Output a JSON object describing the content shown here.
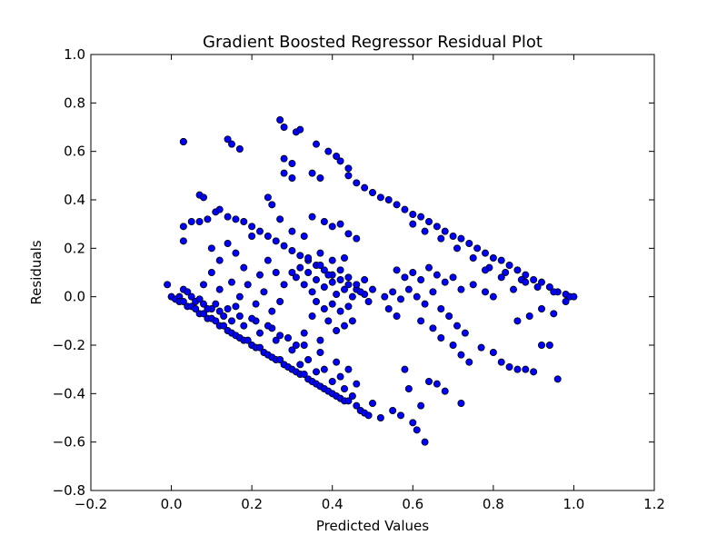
{
  "chart_data": {
    "type": "scatter",
    "title": "Gradient Boosted Regressor Residual Plot",
    "xlabel": "Predicted Values",
    "ylabel": "Residuals",
    "xlim": [
      -0.2,
      1.2
    ],
    "ylim": [
      -0.8,
      1.0
    ],
    "xticks": [
      -0.2,
      0.0,
      0.2,
      0.4,
      0.6,
      0.8,
      1.0,
      1.2
    ],
    "yticks": [
      -0.8,
      -0.6,
      -0.4,
      -0.2,
      0.0,
      0.2,
      0.4,
      0.6,
      0.8,
      1.0
    ],
    "xtick_labels": [
      "−0.2",
      "0.0",
      "0.2",
      "0.4",
      "0.6",
      "0.8",
      "1.0",
      "1.2"
    ],
    "ytick_labels": [
      "−0.8",
      "−0.6",
      "−0.4",
      "−0.2",
      "0.0",
      "0.2",
      "0.4",
      "0.6",
      "0.8",
      "1.0"
    ],
    "grid": false,
    "marker_color": "#0000ff",
    "marker_edge_color": "#000000",
    "series": [
      {
        "points": [
          [
            -0.01,
            0.05
          ],
          [
            0.0,
            0.0
          ],
          [
            0.01,
            -0.01
          ],
          [
            0.02,
            0.0
          ],
          [
            0.02,
            -0.02
          ],
          [
            0.03,
            -0.02
          ],
          [
            0.04,
            -0.04
          ],
          [
            0.05,
            -0.04
          ],
          [
            0.06,
            -0.05
          ],
          [
            0.07,
            -0.07
          ],
          [
            0.08,
            -0.07
          ],
          [
            0.09,
            -0.09
          ],
          [
            0.1,
            -0.09
          ],
          [
            0.11,
            -0.1
          ],
          [
            0.12,
            -0.12
          ],
          [
            0.13,
            -0.12
          ],
          [
            0.14,
            -0.14
          ],
          [
            0.15,
            -0.15
          ],
          [
            0.16,
            -0.16
          ],
          [
            0.17,
            -0.17
          ],
          [
            0.18,
            -0.18
          ],
          [
            0.19,
            -0.18
          ],
          [
            0.2,
            -0.2
          ],
          [
            0.21,
            -0.21
          ],
          [
            0.22,
            -0.21
          ],
          [
            0.23,
            -0.23
          ],
          [
            0.24,
            -0.24
          ],
          [
            0.25,
            -0.25
          ],
          [
            0.26,
            -0.26
          ],
          [
            0.27,
            -0.26
          ],
          [
            0.28,
            -0.28
          ],
          [
            0.29,
            -0.29
          ],
          [
            0.3,
            -0.3
          ],
          [
            0.31,
            -0.31
          ],
          [
            0.32,
            -0.32
          ],
          [
            0.33,
            -0.32
          ],
          [
            0.34,
            -0.34
          ],
          [
            0.35,
            -0.35
          ],
          [
            0.36,
            -0.36
          ],
          [
            0.37,
            -0.37
          ],
          [
            0.38,
            -0.38
          ],
          [
            0.39,
            -0.39
          ],
          [
            0.4,
            -0.4
          ],
          [
            0.41,
            -0.41
          ],
          [
            0.42,
            -0.42
          ],
          [
            0.43,
            -0.43
          ],
          [
            0.44,
            -0.43
          ],
          [
            0.46,
            -0.45
          ],
          [
            0.47,
            -0.47
          ],
          [
            0.48,
            -0.48
          ],
          [
            0.49,
            -0.49
          ],
          [
            0.03,
            0.03
          ],
          [
            0.04,
            0.02
          ],
          [
            0.05,
            0.0
          ],
          [
            0.06,
            -0.02
          ],
          [
            0.08,
            -0.03
          ],
          [
            0.1,
            -0.05
          ],
          [
            0.12,
            -0.06
          ],
          [
            0.15,
            -0.1
          ],
          [
            0.18,
            -0.12
          ],
          [
            0.22,
            -0.15
          ],
          [
            0.26,
            -0.18
          ],
          [
            0.3,
            -0.22
          ],
          [
            0.34,
            -0.26
          ],
          [
            0.38,
            -0.3
          ],
          [
            0.42,
            -0.33
          ],
          [
            0.46,
            -0.36
          ],
          [
            0.07,
            -0.01
          ],
          [
            0.11,
            -0.03
          ],
          [
            0.14,
            -0.05
          ],
          [
            0.17,
            -0.08
          ],
          [
            0.21,
            -0.1
          ],
          [
            0.25,
            -0.13
          ],
          [
            0.29,
            -0.17
          ],
          [
            0.33,
            -0.2
          ],
          [
            0.37,
            -0.23
          ],
          [
            0.41,
            -0.27
          ],
          [
            0.44,
            -0.3
          ],
          [
            0.52,
            -0.5
          ],
          [
            0.55,
            -0.47
          ],
          [
            0.57,
            -0.49
          ],
          [
            0.6,
            -0.52
          ],
          [
            0.61,
            -0.55
          ],
          [
            0.63,
            -0.6
          ],
          [
            0.62,
            -0.45
          ],
          [
            0.64,
            -0.35
          ],
          [
            0.66,
            -0.36
          ],
          [
            0.68,
            -0.39
          ],
          [
            0.72,
            -0.44
          ],
          [
            0.59,
            -0.38
          ],
          [
            0.58,
            -0.3
          ],
          [
            0.03,
            0.64
          ],
          [
            0.03,
            0.64
          ],
          [
            0.14,
            0.65
          ],
          [
            0.15,
            0.63
          ],
          [
            0.17,
            0.61
          ],
          [
            0.27,
            0.73
          ],
          [
            0.28,
            0.7
          ],
          [
            0.31,
            0.68
          ],
          [
            0.32,
            0.69
          ],
          [
            0.28,
            0.57
          ],
          [
            0.3,
            0.55
          ],
          [
            0.28,
            0.51
          ],
          [
            0.3,
            0.49
          ],
          [
            0.36,
            0.63
          ],
          [
            0.39,
            0.6
          ],
          [
            0.41,
            0.58
          ],
          [
            0.42,
            0.56
          ],
          [
            0.44,
            0.53
          ],
          [
            0.35,
            0.51
          ],
          [
            0.37,
            0.49
          ],
          [
            0.44,
            0.5
          ],
          [
            0.46,
            0.47
          ],
          [
            0.48,
            0.45
          ],
          [
            0.5,
            0.43
          ],
          [
            0.52,
            0.41
          ],
          [
            0.54,
            0.4
          ],
          [
            0.56,
            0.38
          ],
          [
            0.58,
            0.36
          ],
          [
            0.6,
            0.34
          ],
          [
            0.62,
            0.33
          ],
          [
            0.64,
            0.31
          ],
          [
            0.66,
            0.29
          ],
          [
            0.68,
            0.27
          ],
          [
            0.7,
            0.25
          ],
          [
            0.72,
            0.24
          ],
          [
            0.74,
            0.22
          ],
          [
            0.76,
            0.2
          ],
          [
            0.78,
            0.18
          ],
          [
            0.8,
            0.16
          ],
          [
            0.82,
            0.15
          ],
          [
            0.84,
            0.13
          ],
          [
            0.86,
            0.11
          ],
          [
            0.88,
            0.09
          ],
          [
            0.9,
            0.07
          ],
          [
            0.92,
            0.06
          ],
          [
            0.94,
            0.04
          ],
          [
            0.96,
            0.02
          ],
          [
            0.98,
            0.01
          ],
          [
            0.99,
            0.0
          ],
          [
            1.0,
            0.0
          ],
          [
            0.6,
            0.3
          ],
          [
            0.63,
            0.27
          ],
          [
            0.67,
            0.24
          ],
          [
            0.71,
            0.2
          ],
          [
            0.75,
            0.16
          ],
          [
            0.79,
            0.12
          ],
          [
            0.83,
            0.1
          ],
          [
            0.87,
            0.07
          ],
          [
            0.91,
            0.04
          ],
          [
            0.95,
            0.02
          ],
          [
            0.07,
            0.42
          ],
          [
            0.08,
            0.41
          ],
          [
            0.05,
            0.31
          ],
          [
            0.07,
            0.31
          ],
          [
            0.09,
            0.32
          ],
          [
            0.11,
            0.35
          ],
          [
            0.12,
            0.36
          ],
          [
            0.14,
            0.33
          ],
          [
            0.16,
            0.32
          ],
          [
            0.18,
            0.31
          ],
          [
            0.2,
            0.29
          ],
          [
            0.22,
            0.27
          ],
          [
            0.24,
            0.25
          ],
          [
            0.26,
            0.23
          ],
          [
            0.28,
            0.21
          ],
          [
            0.3,
            0.19
          ],
          [
            0.32,
            0.17
          ],
          [
            0.34,
            0.15
          ],
          [
            0.36,
            0.13
          ],
          [
            0.38,
            0.11
          ],
          [
            0.4,
            0.09
          ],
          [
            0.42,
            0.07
          ],
          [
            0.44,
            0.05
          ],
          [
            0.46,
            0.03
          ],
          [
            0.48,
            0.01
          ],
          [
            0.03,
            0.29
          ],
          [
            0.03,
            0.23
          ],
          [
            0.24,
            0.41
          ],
          [
            0.25,
            0.38
          ],
          [
            0.27,
            0.32
          ],
          [
            0.3,
            0.27
          ],
          [
            0.33,
            0.25
          ],
          [
            0.35,
            0.33
          ],
          [
            0.38,
            0.31
          ],
          [
            0.4,
            0.29
          ],
          [
            0.42,
            0.3
          ],
          [
            0.44,
            0.26
          ],
          [
            0.46,
            0.24
          ],
          [
            0.3,
            0.1
          ],
          [
            0.31,
            0.08
          ],
          [
            0.32,
            0.12
          ],
          [
            0.33,
            0.05
          ],
          [
            0.34,
            0.1
          ],
          [
            0.35,
            0.02
          ],
          [
            0.36,
            0.07
          ],
          [
            0.37,
            0.13
          ],
          [
            0.38,
            0.04
          ],
          [
            0.39,
            0.09
          ],
          [
            0.4,
            0.06
          ],
          [
            0.41,
            0.01
          ],
          [
            0.42,
            0.11
          ],
          [
            0.43,
            0.03
          ],
          [
            0.44,
            0.08
          ],
          [
            0.45,
            0.0
          ],
          [
            0.46,
            0.05
          ],
          [
            0.47,
            0.02
          ],
          [
            0.48,
            0.07
          ],
          [
            0.49,
            -0.02
          ],
          [
            0.5,
            0.03
          ],
          [
            0.36,
            -0.02
          ],
          [
            0.38,
            -0.05
          ],
          [
            0.4,
            -0.03
          ],
          [
            0.42,
            -0.06
          ],
          [
            0.44,
            -0.04
          ],
          [
            0.34,
            0.16
          ],
          [
            0.37,
            0.18
          ],
          [
            0.4,
            0.15
          ],
          [
            0.43,
            0.16
          ],
          [
            0.35,
            -0.08
          ],
          [
            0.39,
            -0.1
          ],
          [
            0.43,
            -0.12
          ],
          [
            0.33,
            -0.15
          ],
          [
            0.37,
            -0.18
          ],
          [
            0.41,
            -0.14
          ],
          [
            0.45,
            -0.1
          ],
          [
            0.28,
            0.05
          ],
          [
            0.26,
            0.1
          ],
          [
            0.27,
            -0.02
          ],
          [
            0.55,
            0.02
          ],
          [
            0.57,
            -0.01
          ],
          [
            0.59,
            0.03
          ],
          [
            0.61,
            0.0
          ],
          [
            0.63,
            -0.03
          ],
          [
            0.65,
            0.02
          ],
          [
            0.67,
            -0.05
          ],
          [
            0.69,
            -0.08
          ],
          [
            0.71,
            -0.12
          ],
          [
            0.73,
            -0.15
          ],
          [
            0.6,
            0.1
          ],
          [
            0.62,
            0.07
          ],
          [
            0.64,
            0.12
          ],
          [
            0.66,
            0.09
          ],
          [
            0.68,
            0.06
          ],
          [
            0.7,
            0.08
          ],
          [
            0.72,
            0.03
          ],
          [
            0.75,
            0.05
          ],
          [
            0.78,
            0.02
          ],
          [
            0.8,
            0.0
          ],
          [
            0.56,
            0.11
          ],
          [
            0.58,
            0.08
          ],
          [
            0.53,
            0.0
          ],
          [
            0.54,
            -0.05
          ],
          [
            0.56,
            -0.08
          ],
          [
            0.62,
            -0.1
          ],
          [
            0.65,
            -0.13
          ],
          [
            0.67,
            -0.17
          ],
          [
            0.7,
            -0.2
          ],
          [
            0.72,
            -0.24
          ],
          [
            0.74,
            -0.27
          ],
          [
            0.77,
            -0.21
          ],
          [
            0.8,
            -0.23
          ],
          [
            0.82,
            -0.27
          ],
          [
            0.84,
            -0.29
          ],
          [
            0.86,
            -0.3
          ],
          [
            0.88,
            -0.3
          ],
          [
            0.9,
            -0.31
          ],
          [
            0.92,
            -0.2
          ],
          [
            0.94,
            -0.2
          ],
          [
            0.96,
            -0.34
          ],
          [
            0.86,
            -0.1
          ],
          [
            0.89,
            -0.08
          ],
          [
            0.92,
            -0.05
          ],
          [
            0.95,
            -0.07
          ],
          [
            0.98,
            -0.02
          ],
          [
            0.85,
            0.03
          ],
          [
            0.88,
            0.06
          ],
          [
            0.82,
            0.08
          ],
          [
            0.78,
            0.11
          ],
          [
            0.1,
            0.2
          ],
          [
            0.12,
            0.15
          ],
          [
            0.14,
            0.22
          ],
          [
            0.16,
            0.18
          ],
          [
            0.18,
            0.12
          ],
          [
            0.2,
            0.25
          ],
          [
            0.22,
            0.09
          ],
          [
            0.24,
            0.15
          ],
          [
            0.08,
            0.05
          ],
          [
            0.1,
            0.1
          ],
          [
            0.12,
            0.03
          ],
          [
            0.15,
            0.06
          ],
          [
            0.17,
            0.0
          ],
          [
            0.19,
            0.05
          ],
          [
            0.21,
            -0.03
          ],
          [
            0.23,
            0.02
          ],
          [
            0.25,
            -0.06
          ],
          [
            0.09,
            -0.05
          ],
          [
            0.13,
            -0.08
          ],
          [
            0.16,
            -0.04
          ],
          [
            0.2,
            -0.09
          ],
          [
            0.24,
            -0.12
          ],
          [
            0.27,
            -0.16
          ],
          [
            0.31,
            -0.2
          ],
          [
            0.32,
            -0.28
          ],
          [
            0.36,
            -0.31
          ],
          [
            0.4,
            -0.35
          ],
          [
            0.43,
            -0.38
          ],
          [
            0.45,
            -0.41
          ],
          [
            0.5,
            -0.44
          ]
        ]
      }
    ]
  }
}
